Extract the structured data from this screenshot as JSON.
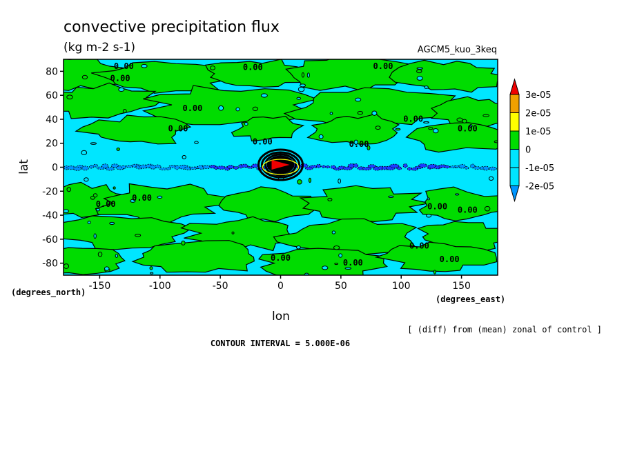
{
  "chart_data": {
    "type": "heatmap",
    "title": "convective precipitation flux",
    "units": "(kg m-2 s-1)",
    "experiment": "AGCM5_kuo_3keq",
    "xlabel": "lon",
    "ylabel": "lat",
    "x_units": "(degrees_east)",
    "y_units": "(degrees_north)",
    "xlim": [
      -180,
      180
    ],
    "ylim": [
      -90,
      90
    ],
    "x_ticks": [
      -150,
      -100,
      -50,
      0,
      50,
      100,
      150
    ],
    "y_ticks": [
      80,
      60,
      40,
      20,
      0,
      -20,
      -40,
      -60,
      -80
    ],
    "x_tick_labels": [
      "-150",
      "-100",
      "-50",
      "0",
      "50",
      "100",
      "150"
    ],
    "y_tick_labels": [
      "80",
      "60",
      "40",
      "20",
      "0",
      "-20",
      "-40",
      "-60",
      "-80"
    ],
    "contour_interval": "CONTOUR INTERVAL = 5.000E-06",
    "contour_label": "0.00",
    "subtitle_note": "[ (diff) from (mean) zonal of control ]",
    "colorbar": {
      "labels": [
        "3e-05",
        "2e-05",
        "1e-05",
        "0",
        "-1e-05",
        "-2e-05"
      ],
      "colors": [
        "#f00000",
        "#f0a000",
        "#ffff00",
        "#00dc00",
        "#00e6ff",
        "#0096ff"
      ]
    },
    "background_color": "#00e6ff",
    "positive_color": "#00dc00",
    "peak": {
      "lon": 0,
      "lat": 2,
      "value_range": "> 3e-05"
    }
  }
}
